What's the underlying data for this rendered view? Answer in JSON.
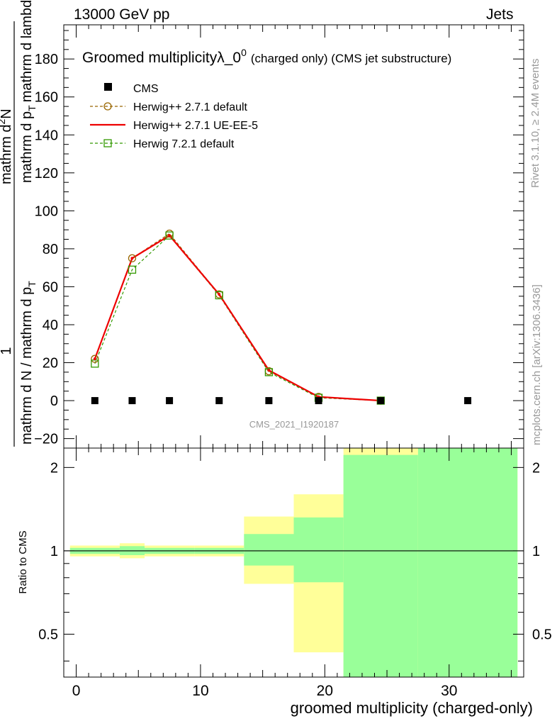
{
  "header": {
    "energy": "13000 GeV pp",
    "category": "Jets"
  },
  "side_labels": {
    "rivet": "Rivet 3.1.10, ≥ 2.4M events",
    "source": "mcplots.cern.ch [arXiv:1306.3436]"
  },
  "colors": {
    "cms": "#000000",
    "herwig_default": "#996600",
    "herwig_ueee5": "#ee0000",
    "herwig72": "#339900",
    "band_yellow": "#ffff99",
    "band_green": "#99ff99"
  },
  "chart_data": [
    {
      "type": "line",
      "title": "Groomed multiplicity",
      "title_symbol": "λ_0",
      "title_sup": "0",
      "title_suffix": "(charged only) (CMS jet substructure)",
      "analysis_label": "CMS_2021_I1920187",
      "ylabel": {
        "numerator_top": "1",
        "numerator_bottom": "mathrm d N / mathrm d p_T mathrm d lambda",
        "numerator_pre": "mathrm dN / mathrm d p",
        "denominator": "mathrm d N / mathrm d p",
        "overall": "mathrm d N / mathrm d p_T  ·  1 / (mathrm d N / mathrm d p_T mathrm d lambda)"
      },
      "ylabel_lines": {
        "frac_num_1": "mathrm d",
        "frac_num_sup": "2",
        "frac_num_2": "N",
        "frac_den_1": "mathrm d p",
        "frac_den_sub": "T",
        "frac_den_2": "mathrm d lambda",
        "one": "1",
        "den_text_1": "mathrm d N / mathrm d p",
        "den_sub": "T"
      },
      "xlim": [
        -1,
        36
      ],
      "ylim": [
        -25,
        198
      ],
      "y_ticks": [
        -20,
        0,
        20,
        40,
        60,
        80,
        100,
        120,
        140,
        160,
        180
      ],
      "legend_position": "top-left",
      "series": [
        {
          "name": "CMS",
          "marker": "square",
          "x": [
            1.5,
            4.5,
            7.5,
            11.5,
            15.5,
            19.5,
            24.5,
            31.5
          ],
          "y": [
            0,
            0,
            0,
            0,
            0,
            0,
            0,
            0
          ]
        },
        {
          "name": "Herwig++ 2.7.1 default",
          "marker": "circle",
          "style": "dashed",
          "x": [
            1.5,
            4.5,
            7.5,
            11.5,
            15.5,
            19.5,
            24.5
          ],
          "y": [
            22,
            75,
            88,
            56,
            15.5,
            2,
            0
          ]
        },
        {
          "name": "Herwig++ 2.7.1 UE-EE-5",
          "marker": "none",
          "style": "solid",
          "x": [
            1.5,
            4.5,
            7.5,
            11.5,
            15.5,
            19.5,
            24.5
          ],
          "y": [
            22,
            75,
            87,
            56,
            16,
            2,
            0
          ]
        },
        {
          "name": "Herwig 7.2.1 default",
          "marker": "open-square",
          "style": "dashed",
          "x": [
            1.5,
            4.5,
            7.5,
            11.5,
            15.5,
            19.5,
            24.5
          ],
          "y": [
            19.5,
            69,
            87,
            55.5,
            15,
            1.5,
            0
          ]
        }
      ]
    },
    {
      "type": "area",
      "ylabel": "Ratio to CMS",
      "xlabel": "groomed multiplicity (charged-only)",
      "xlim": [
        -1,
        36
      ],
      "ylim": [
        0.35,
        2.35
      ],
      "x_ticks": [
        0,
        10,
        20,
        30
      ],
      "y_ticks_labeled": [
        0.5,
        1,
        2
      ],
      "reference_line": 1,
      "log_scale": true,
      "bands": [
        {
          "x0": -0.5,
          "x1": 3.5,
          "yellow": [
            0.955,
            1.045
          ],
          "green": [
            0.975,
            1.025
          ]
        },
        {
          "x0": 3.5,
          "x1": 5.5,
          "yellow": [
            0.94,
            1.065
          ],
          "green": [
            0.965,
            1.04
          ]
        },
        {
          "x0": 5.5,
          "x1": 9.5,
          "yellow": [
            0.955,
            1.045
          ],
          "green": [
            0.975,
            1.025
          ]
        },
        {
          "x0": 9.5,
          "x1": 13.5,
          "yellow": [
            0.955,
            1.045
          ],
          "green": [
            0.975,
            1.025
          ]
        },
        {
          "x0": 13.5,
          "x1": 17.5,
          "yellow": [
            0.76,
            1.33
          ],
          "green": [
            0.885,
            1.15
          ]
        },
        {
          "x0": 17.5,
          "x1": 21.5,
          "yellow": [
            0.43,
            1.6
          ],
          "green": [
            0.77,
            1.32
          ]
        },
        {
          "x0": 21.5,
          "x1": 27.5,
          "yellow": [
            0.35,
            2.35
          ],
          "green": [
            0.35,
            2.22
          ]
        },
        {
          "x0": 27.5,
          "x1": 35.5,
          "yellow": [
            0.35,
            2.35
          ],
          "green": [
            0.35,
            2.35
          ]
        }
      ]
    }
  ]
}
